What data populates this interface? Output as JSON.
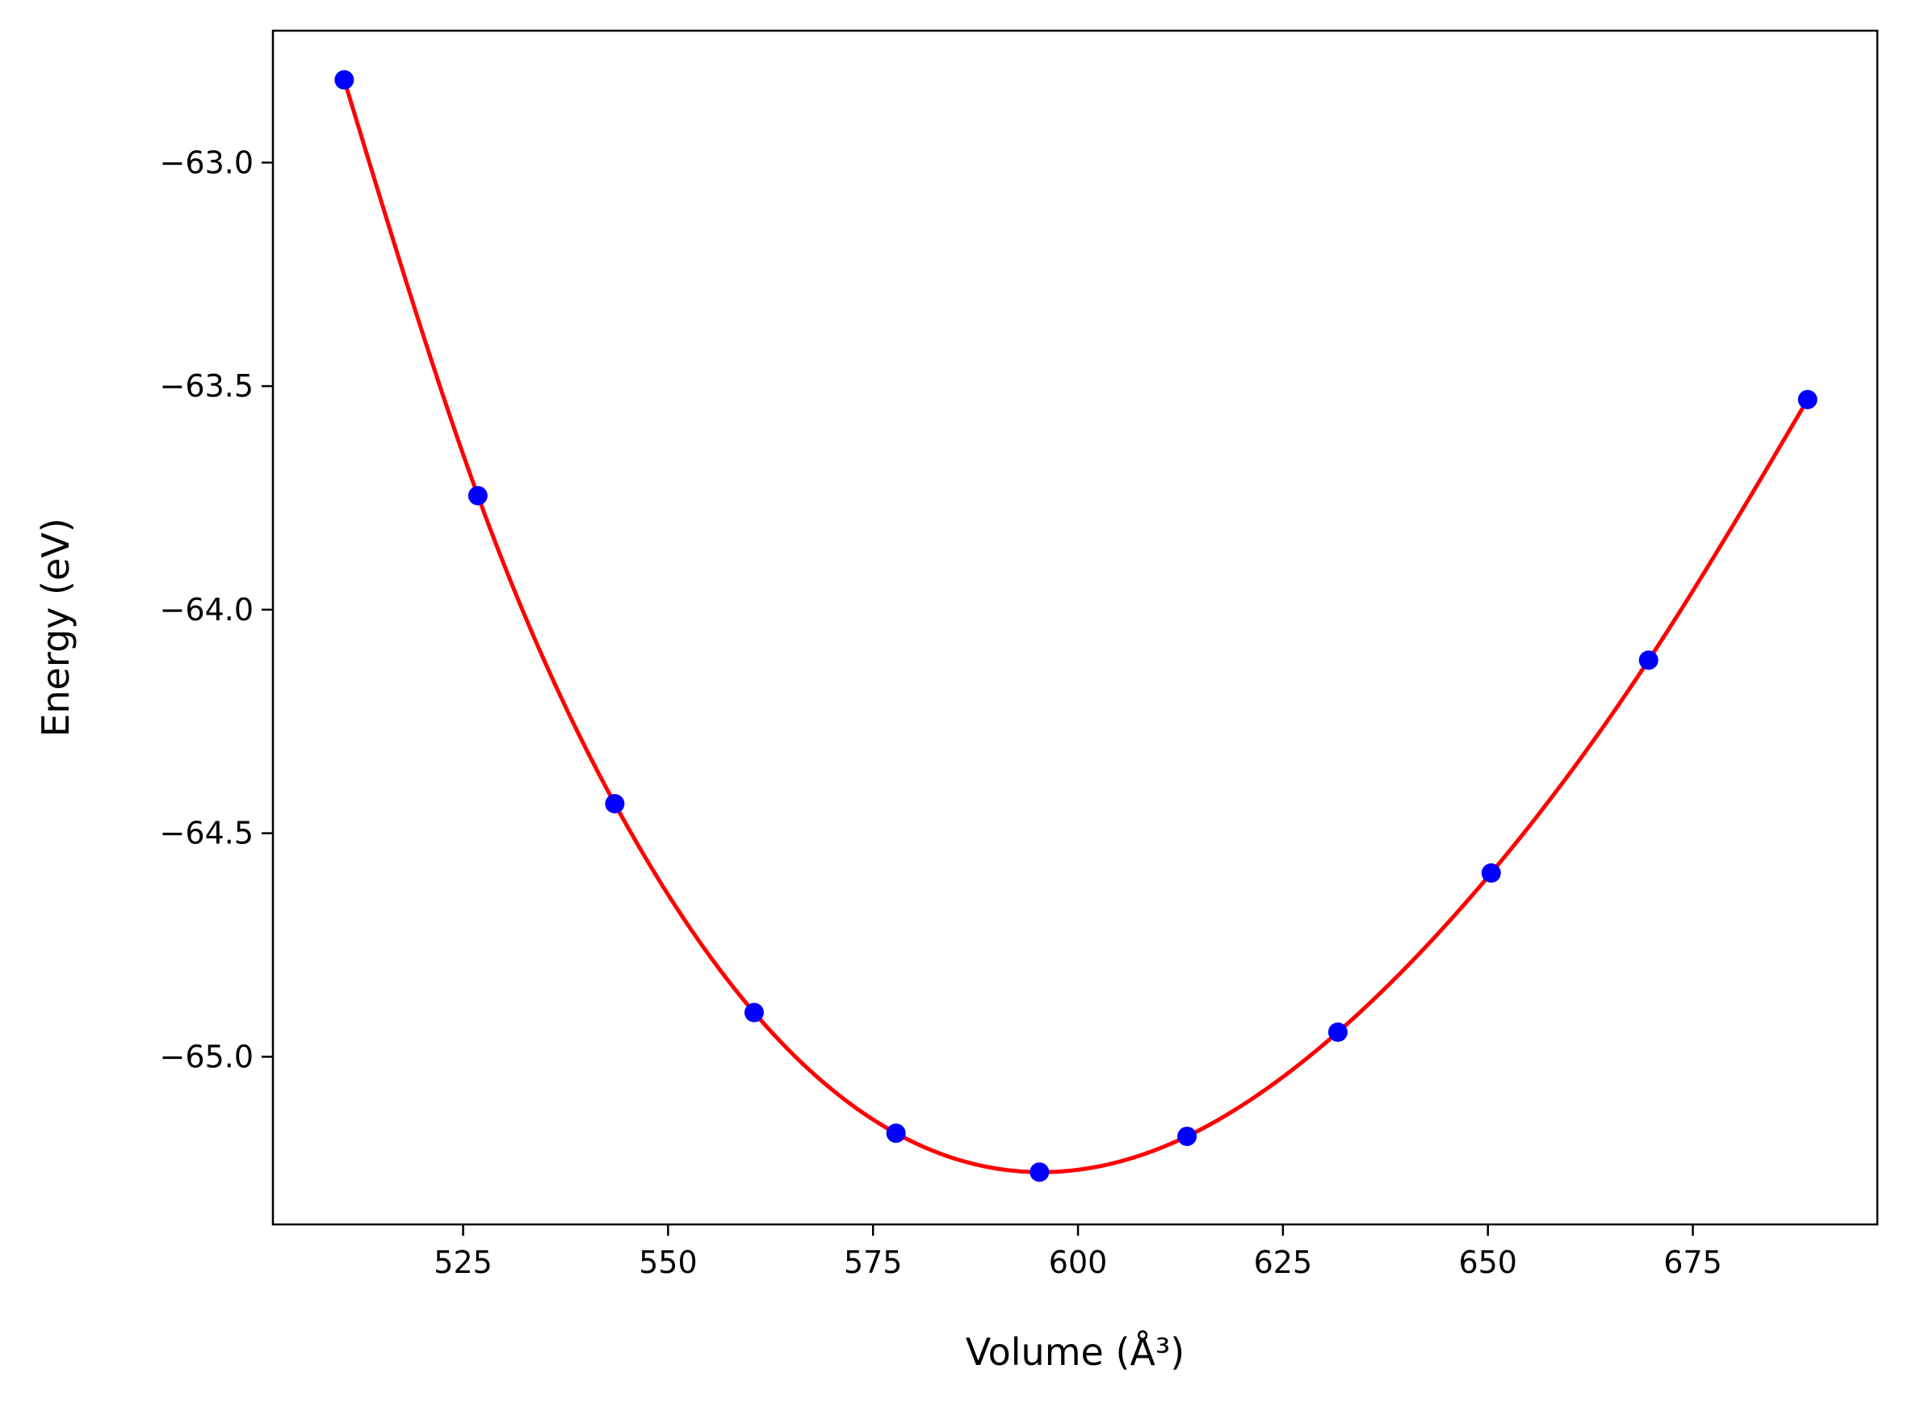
{
  "chart_data": {
    "type": "scatter",
    "title": "",
    "xlabel": "Volume (Å³)",
    "ylabel": "Energy (eV)",
    "xlim": [
      501.8,
      697.5
    ],
    "ylim": [
      -65.375,
      -62.705
    ],
    "xticks": [
      525,
      550,
      575,
      600,
      625,
      650,
      675
    ],
    "xtick_labels": [
      "525",
      "550",
      "575",
      "600",
      "625",
      "650",
      "675"
    ],
    "yticks": [
      -63.0,
      -63.5,
      -64.0,
      -64.5,
      -65.0
    ],
    "ytick_labels": [
      "−63.0",
      "−63.5",
      "−64.0",
      "−64.5",
      "−65.0"
    ],
    "grid": false,
    "series": [
      {
        "kind": "points",
        "color": "#0000ff",
        "x": [
          510.5,
          526.8,
          543.5,
          560.5,
          577.8,
          595.3,
          613.3,
          631.7,
          650.4,
          669.6,
          689.0
        ],
        "y": [
          -62.815,
          -63.745,
          -64.434,
          -64.901,
          -65.171,
          -65.258,
          -65.178,
          -64.945,
          -64.589,
          -64.113,
          -63.53
        ]
      },
      {
        "kind": "fit-curve",
        "color": "#ff0000",
        "x": [
          510.5,
          526.8,
          543.5,
          560.5,
          577.8,
          595.3,
          613.3,
          631.7,
          650.4,
          669.6,
          689.0
        ],
        "y": [
          -62.815,
          -63.745,
          -64.434,
          -64.901,
          -65.171,
          -65.258,
          -65.178,
          -64.945,
          -64.589,
          -64.113,
          -63.53
        ]
      }
    ]
  }
}
